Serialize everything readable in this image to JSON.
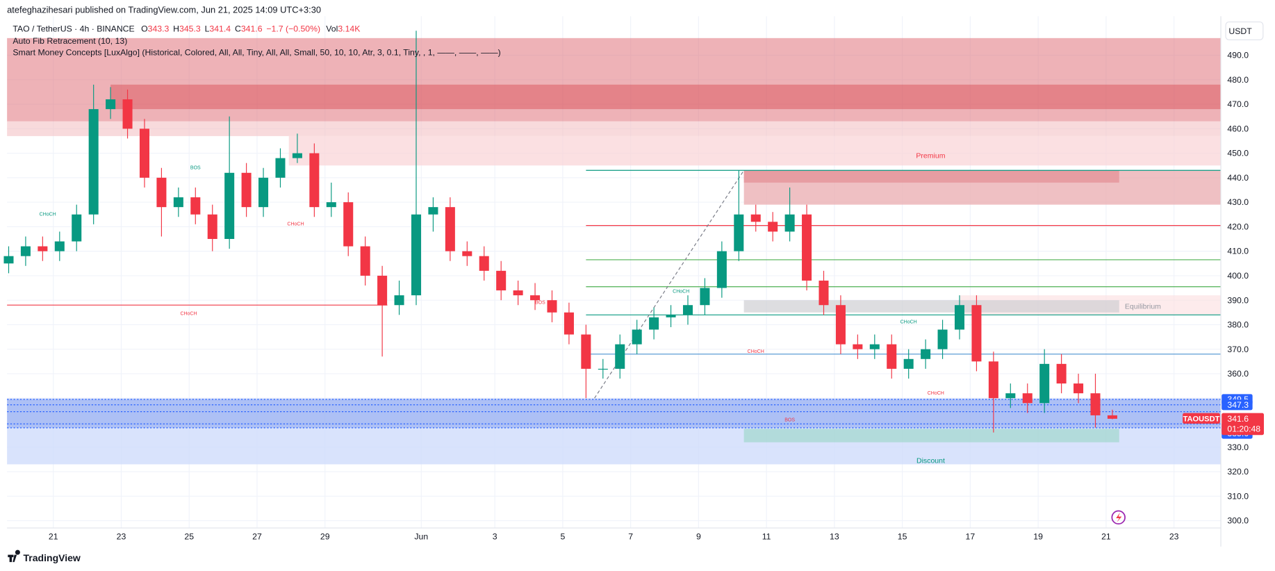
{
  "header": {
    "publisher": "atefeghazihesari published on TradingView.com, Jun 21, 2025 14:09 UTC+3:30",
    "legend": {
      "symbol": "TAO / TetherUS · 4h · BINANCE",
      "fields": [
        {
          "label": "O",
          "value": 343.3
        },
        {
          "label": "H",
          "value": 345.3
        },
        {
          "label": "L",
          "value": 341.4
        },
        {
          "label": "C",
          "value": 341.6
        }
      ],
      "change": "−1.7 (−0.50%)",
      "volume_label": "Vol",
      "volume": "3.14K"
    },
    "indicators": [
      "Auto Fib Retracement (10, 13)",
      "Smart Money Concepts [LuxAlgo] (Historical, Colored, All, All, Tiny, All, All, Small, 50, 10, 10, Atr, 3, 0.1, Tiny, , 1, ——, ——, ——)"
    ],
    "currency": "USDT"
  },
  "footer": {
    "brand": "TradingView"
  },
  "chart_data": {
    "type": "candlestick",
    "up_color": "#089981",
    "down_color": "#f23645",
    "open": [
      405,
      408,
      412,
      410,
      414,
      425,
      468,
      472,
      460,
      440,
      428,
      432,
      425,
      415,
      442,
      428,
      440,
      448,
      450,
      428,
      430,
      412,
      400,
      388,
      392,
      425,
      428,
      410,
      408,
      402,
      394,
      392,
      390,
      385,
      376,
      362,
      362,
      372,
      378,
      383,
      384,
      388,
      395,
      410,
      425,
      422,
      418,
      425,
      398,
      388,
      372,
      370,
      372,
      362,
      366,
      370,
      378,
      388,
      365,
      350,
      352,
      348,
      364,
      356,
      352,
      343
    ],
    "high": [
      412,
      416,
      416,
      418,
      429,
      478,
      477,
      476,
      464,
      444,
      436,
      436,
      429,
      465,
      446,
      444,
      452,
      458,
      454,
      438,
      434,
      416,
      404,
      398,
      500,
      432,
      432,
      414,
      412,
      406,
      398,
      397,
      394,
      389,
      380,
      366,
      376,
      382,
      387,
      388,
      392,
      399,
      414,
      443,
      429,
      426,
      436,
      429,
      402,
      392,
      376,
      376,
      376,
      370,
      374,
      382,
      392,
      392,
      369,
      356,
      356,
      370,
      368,
      360,
      360,
      345.3
    ],
    "low": [
      401,
      404,
      406,
      406,
      410,
      421,
      464,
      456,
      436,
      416,
      424,
      421,
      410,
      411,
      424,
      424,
      436,
      446,
      424,
      424,
      408,
      396,
      367,
      384,
      388,
      418,
      406,
      404,
      398,
      390,
      388,
      386,
      381,
      372,
      350,
      358,
      358,
      368,
      374,
      379,
      380,
      384,
      391,
      406,
      418,
      414,
      414,
      394,
      384,
      368,
      366,
      366,
      358,
      358,
      362,
      366,
      374,
      361,
      336,
      346,
      344,
      344,
      352,
      348,
      338,
      341.4
    ],
    "close": [
      408,
      412,
      410,
      414,
      425,
      468,
      472,
      460,
      440,
      428,
      432,
      425,
      415,
      442,
      428,
      440,
      448,
      450,
      428,
      430,
      412,
      400,
      388,
      392,
      425,
      428,
      410,
      408,
      402,
      394,
      392,
      390,
      385,
      376,
      362,
      362,
      372,
      378,
      383,
      384,
      388,
      395,
      410,
      425,
      422,
      418,
      425,
      398,
      388,
      372,
      370,
      372,
      362,
      366,
      370,
      378,
      388,
      365,
      350,
      352,
      348,
      364,
      356,
      352,
      343,
      341.6
    ],
    "ylim": [
      297,
      500
    ],
    "yticks": [
      {
        "value": 300,
        "label": "300.0"
      },
      {
        "value": 310,
        "label": "310.0"
      },
      {
        "value": 320,
        "label": "320.0"
      },
      {
        "value": 330,
        "label": "330.0"
      },
      {
        "value": 340,
        "label": "340.0"
      },
      {
        "value": 350,
        "label": "350.0"
      },
      {
        "value": 360,
        "label": "360.0"
      },
      {
        "value": 370,
        "label": "370.0"
      },
      {
        "value": 380,
        "label": "380.0"
      },
      {
        "value": 390,
        "label": "390.0"
      },
      {
        "value": 400,
        "label": "400.0"
      },
      {
        "value": 410,
        "label": "410.0"
      },
      {
        "value": 420,
        "label": "420.0"
      },
      {
        "value": 430,
        "label": "430.0"
      },
      {
        "value": 440,
        "label": "440.0"
      },
      {
        "value": 450,
        "label": "450.0"
      },
      {
        "value": 460,
        "label": "460.0"
      },
      {
        "value": 470,
        "label": "470.0"
      },
      {
        "value": 480,
        "label": "480.0"
      },
      {
        "value": 490,
        "label": "490.0"
      }
    ],
    "xticks": [
      {
        "value": 2.63,
        "label": "21"
      },
      {
        "value": 6.63,
        "label": "23"
      },
      {
        "value": 10.63,
        "label": "25"
      },
      {
        "value": 14.63,
        "label": "27"
      },
      {
        "value": 18.63,
        "label": "29"
      },
      {
        "value": 24.3,
        "label": "Jun"
      },
      {
        "value": 28.63,
        "label": "3"
      },
      {
        "value": 32.63,
        "label": "5"
      },
      {
        "value": 36.63,
        "label": "7"
      },
      {
        "value": 40.63,
        "label": "9"
      },
      {
        "value": 44.63,
        "label": "11"
      },
      {
        "value": 48.63,
        "label": "13"
      },
      {
        "value": 52.63,
        "label": "15"
      },
      {
        "value": 56.63,
        "label": "17"
      },
      {
        "value": 60.63,
        "label": "19"
      },
      {
        "value": 64.63,
        "label": "21"
      },
      {
        "value": 68.63,
        "label": "23"
      }
    ],
    "grid": true,
    "zones": [
      {
        "from": null,
        "to": null,
        "top": 497,
        "bottom": 463,
        "fill": "#e0737b",
        "opacity": 0.55
      },
      {
        "from": 6,
        "to": null,
        "top": 478,
        "bottom": 468,
        "fill": "#d9535c",
        "opacity": 0.5
      },
      {
        "from": null,
        "to": null,
        "top": 463,
        "bottom": 457,
        "fill": "#f4c1c4",
        "opacity": 0.6
      },
      {
        "from": 16.5,
        "to": null,
        "top": 457,
        "bottom": 445,
        "fill": "#f9d3d5",
        "opacity": 0.7
      },
      {
        "from": 43.3,
        "to": null,
        "top": 443,
        "bottom": 429,
        "fill": "#ebb0b4",
        "opacity": 0.8
      },
      {
        "from": 43.3,
        "to": 65.4,
        "top": 443,
        "bottom": 438,
        "fill": "#e48e94",
        "opacity": 0.7
      },
      {
        "from": 56,
        "to": null,
        "top": 392,
        "bottom": 384,
        "fill": "#fbdde0",
        "opacity": 0.6
      },
      {
        "from": 43.3,
        "to": 65.4,
        "top": 390,
        "bottom": 385,
        "fill": "#cfcfd3",
        "opacity": 0.7
      },
      {
        "from": null,
        "to": null,
        "top": 350,
        "bottom": 323,
        "fill": "#cfdcfb",
        "opacity": 0.8
      },
      {
        "from": null,
        "to": null,
        "top": 349.5,
        "bottom": 338,
        "fill": "#8fa8f0",
        "opacity": 0.6
      },
      {
        "from": 43.3,
        "to": 65.4,
        "top": 337.5,
        "bottom": 332,
        "fill": "#a8d8d2",
        "opacity": 0.8
      }
    ],
    "levels": [
      {
        "price": 388,
        "from": null,
        "to": 22.3,
        "color": "#f23645",
        "dash": false
      },
      {
        "price": 443,
        "from": 34,
        "to": null,
        "color": "#089981",
        "dash": false
      },
      {
        "price": 420.5,
        "from": 34,
        "to": null,
        "color": "#f23645",
        "dash": false
      },
      {
        "price": 406.5,
        "from": 34,
        "to": null,
        "color": "#4caf50",
        "dash": false
      },
      {
        "price": 395.5,
        "from": 34,
        "to": null,
        "color": "#4caf50",
        "dash": false
      },
      {
        "price": 384,
        "from": 34,
        "to": null,
        "color": "#089981",
        "dash": false
      },
      {
        "price": 368,
        "from": 34,
        "to": null,
        "color": "#5b9bd5",
        "dash": false
      },
      {
        "price": 349.5,
        "from": null,
        "to": null,
        "color": "#2962ff",
        "dash": true
      },
      {
        "price": 347.3,
        "from": null,
        "to": null,
        "color": "#2962ff",
        "dash": true
      },
      {
        "price": 344.5,
        "from": null,
        "to": null,
        "color": "#2962ff",
        "dash": true
      },
      {
        "price": 339.5,
        "from": null,
        "to": null,
        "color": "#2962ff",
        "dash": true
      },
      {
        "price": 337.9,
        "from": null,
        "to": null,
        "color": "#2962ff",
        "dash": true
      }
    ],
    "trend_line": {
      "from": [
        34.5,
        350
      ],
      "to": [
        43.3,
        443
      ]
    },
    "annotations": [
      {
        "text": "CHoCH",
        "x": 10.6,
        "price": 385,
        "color": "#f23645"
      },
      {
        "text": "BOS",
        "x": 46,
        "price": 341.5,
        "color": "#f23645"
      },
      {
        "text": "Premium",
        "x": 54.3,
        "price": 449,
        "color": "#f23645"
      },
      {
        "text": "Equilibrium",
        "x": 66.8,
        "price": 387.5,
        "color": "#9598a1"
      },
      {
        "text": "Discount",
        "x": 54.3,
        "price": 324.5,
        "color": "#089981"
      },
      {
        "text": "CHoCH",
        "x": 2.3,
        "price": 425.5,
        "color": "#089981"
      },
      {
        "text": "BOS",
        "x": 11,
        "price": 444.5,
        "color": "#089981"
      },
      {
        "text": "CHoCH",
        "x": 16.9,
        "price": 421.5,
        "color": "#f23645"
      },
      {
        "text": "BOS",
        "x": 31.3,
        "price": 389.5,
        "color": "#f23645"
      },
      {
        "text": "CHoCH",
        "x": 39.6,
        "price": 394,
        "color": "#089981"
      },
      {
        "text": "CHoCH",
        "x": 44,
        "price": 369.5,
        "color": "#f23645"
      },
      {
        "text": "CHoCH",
        "x": 53,
        "price": 381.5,
        "color": "#089981"
      },
      {
        "text": "CHoCH",
        "x": 54.6,
        "price": 352.5,
        "color": "#f23645"
      }
    ],
    "price_badges": [
      {
        "value": 349.5,
        "color": "#2962ff"
      },
      {
        "value": 347.3,
        "color": "#2962ff"
      },
      {
        "value": 337.9,
        "color": "#2962ff"
      },
      {
        "value": 335.6,
        "color": "#2962ff"
      }
    ],
    "last_price": {
      "symbol": "TAOUSDT",
      "value": 341.6,
      "countdown": "01:20:48",
      "color": "#f23645"
    }
  }
}
